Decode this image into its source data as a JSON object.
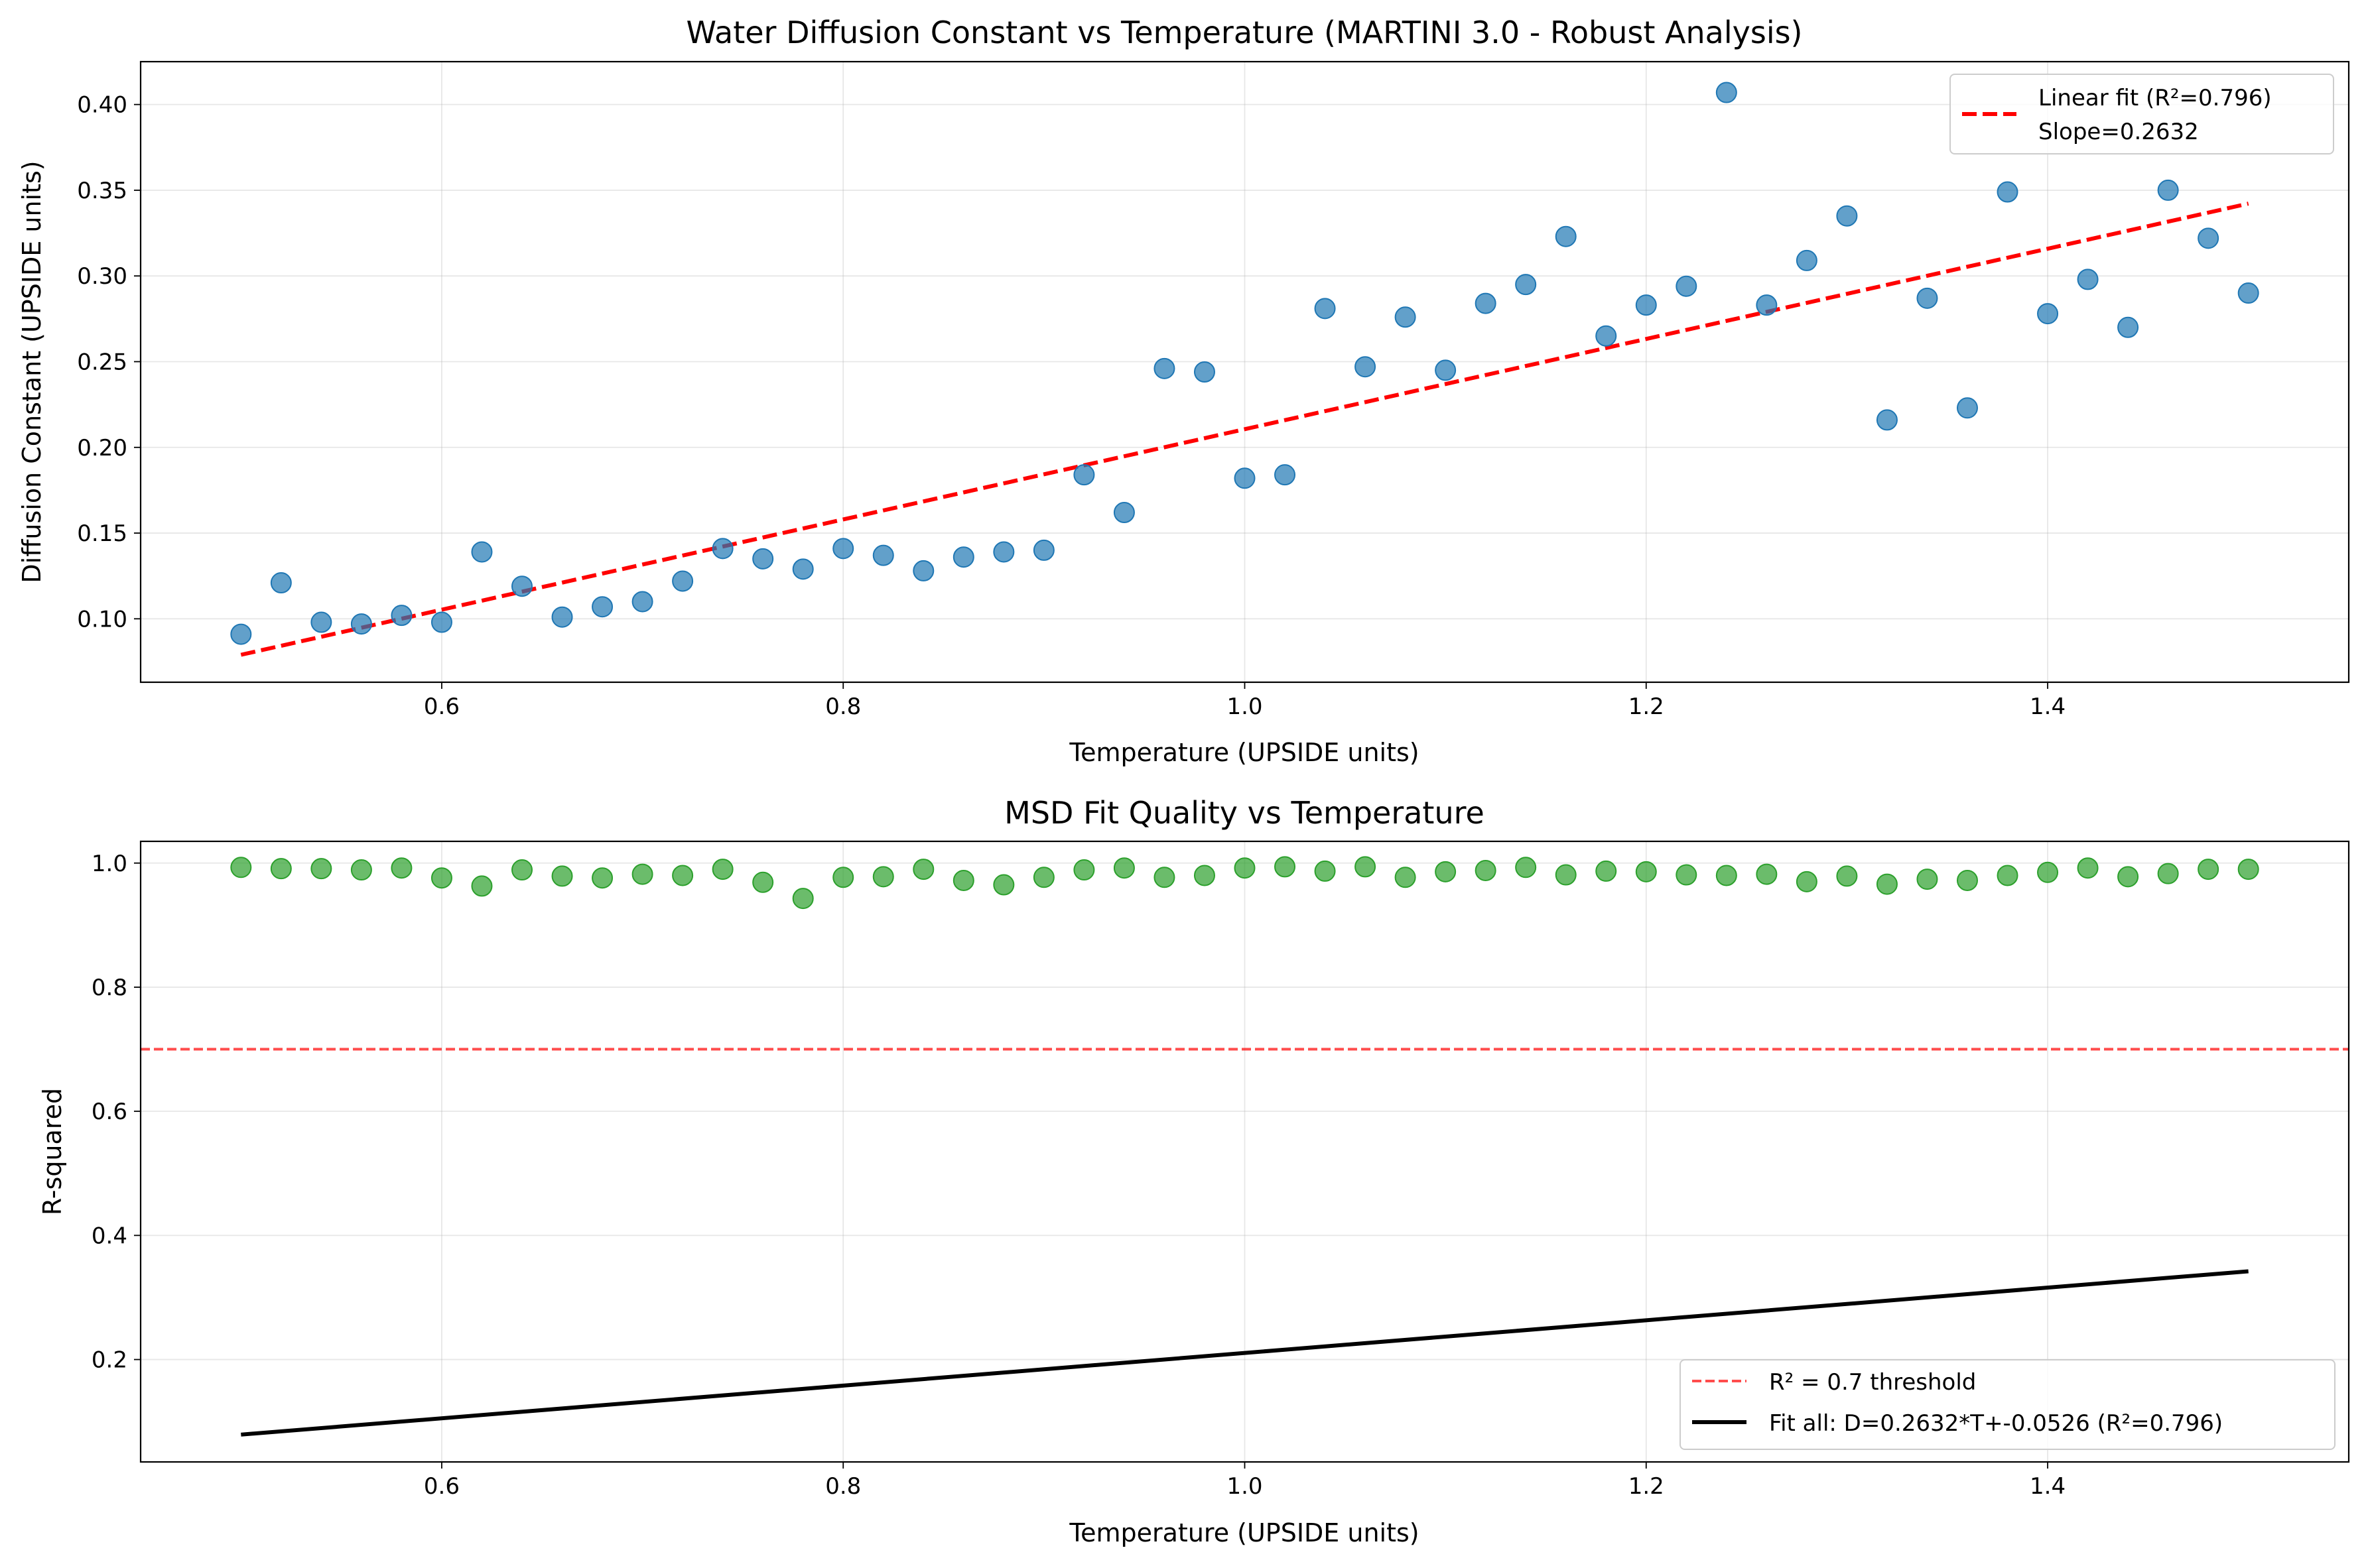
{
  "chart_data": [
    {
      "type": "scatter",
      "title": "Water Diffusion Constant vs Temperature (MARTINI 3.0 - Robust Analysis)",
      "xlabel": "Temperature (UPSIDE units)",
      "ylabel": "Diffusion Constant (UPSIDE units)",
      "xlim": [
        0.45,
        1.55
      ],
      "ylim": [
        0.063,
        0.425
      ],
      "grid": true,
      "legend_position": "top-right",
      "x_ticks": [
        0.6,
        0.8,
        1.0,
        1.2,
        1.4
      ],
      "x_tick_labels": [
        "0.6",
        "0.8",
        "1.0",
        "1.2",
        "1.4"
      ],
      "y_ticks": [
        0.1,
        0.15,
        0.2,
        0.25,
        0.3,
        0.35,
        0.4
      ],
      "y_tick_labels": [
        "0.10",
        "0.15",
        "0.20",
        "0.25",
        "0.30",
        "0.35",
        "0.40"
      ],
      "series": [
        {
          "kind": "scatter",
          "color": "#1f77b4",
          "x": [
            0.5,
            0.52,
            0.54,
            0.56,
            0.58,
            0.6,
            0.62,
            0.64,
            0.66,
            0.68,
            0.7,
            0.72,
            0.74,
            0.76,
            0.78,
            0.8,
            0.82,
            0.84,
            0.86,
            0.88,
            0.9,
            0.92,
            0.94,
            0.96,
            0.98,
            1.0,
            1.02,
            1.04,
            1.06,
            1.08,
            1.1,
            1.12,
            1.14,
            1.16,
            1.18,
            1.2,
            1.22,
            1.24,
            1.26,
            1.28,
            1.3,
            1.32,
            1.34,
            1.36,
            1.38,
            1.4,
            1.42,
            1.44,
            1.46,
            1.48,
            1.5
          ],
          "y": [
            0.091,
            0.121,
            0.098,
            0.097,
            0.102,
            0.098,
            0.139,
            0.119,
            0.101,
            0.107,
            0.11,
            0.122,
            0.141,
            0.135,
            0.129,
            0.141,
            0.137,
            0.128,
            0.136,
            0.139,
            0.14,
            0.184,
            0.162,
            0.246,
            0.244,
            0.182,
            0.184,
            0.281,
            0.247,
            0.276,
            0.245,
            0.284,
            0.295,
            0.323,
            0.265,
            0.283,
            0.294,
            0.407,
            0.283,
            0.309,
            0.335,
            0.216,
            0.287,
            0.223,
            0.349,
            0.278,
            0.298,
            0.27,
            0.35,
            0.322,
            0.29
          ]
        },
        {
          "kind": "line",
          "style": "dashed",
          "color": "#ff0000",
          "x": [
            0.5,
            1.5
          ],
          "y": [
            0.079,
            0.3422
          ]
        }
      ],
      "legend": [
        {
          "kind": "dashed",
          "color": "#ff0000",
          "label_line1": "Linear fit (R²=0.796)",
          "label_line2": "Slope=0.2632"
        }
      ]
    },
    {
      "type": "scatter",
      "title": "MSD Fit Quality vs Temperature",
      "xlabel": "Temperature (UPSIDE units)",
      "ylabel": "R-squared",
      "xlim": [
        0.45,
        1.55
      ],
      "ylim": [
        0.035,
        1.035
      ],
      "grid": true,
      "legend_position": "bottom-right",
      "x_ticks": [
        0.6,
        0.8,
        1.0,
        1.2,
        1.4
      ],
      "x_tick_labels": [
        "0.6",
        "0.8",
        "1.0",
        "1.2",
        "1.4"
      ],
      "y_ticks": [
        0.2,
        0.4,
        0.6,
        0.8,
        1.0
      ],
      "y_tick_labels": [
        "0.2",
        "0.4",
        "0.6",
        "0.8",
        "1.0"
      ],
      "series": [
        {
          "kind": "scatter",
          "color": "#2ca02c",
          "x": [
            0.5,
            0.52,
            0.54,
            0.56,
            0.58,
            0.6,
            0.62,
            0.64,
            0.66,
            0.68,
            0.7,
            0.72,
            0.74,
            0.76,
            0.78,
            0.8,
            0.82,
            0.84,
            0.86,
            0.88,
            0.9,
            0.92,
            0.94,
            0.96,
            0.98,
            1.0,
            1.02,
            1.04,
            1.06,
            1.08,
            1.1,
            1.12,
            1.14,
            1.16,
            1.18,
            1.2,
            1.22,
            1.24,
            1.26,
            1.28,
            1.3,
            1.32,
            1.34,
            1.36,
            1.38,
            1.4,
            1.42,
            1.44,
            1.46,
            1.48,
            1.5
          ],
          "y": [
            0.993,
            0.991,
            0.991,
            0.989,
            0.992,
            0.976,
            0.963,
            0.989,
            0.979,
            0.976,
            0.982,
            0.98,
            0.99,
            0.969,
            0.943,
            0.977,
            0.978,
            0.99,
            0.972,
            0.965,
            0.977,
            0.989,
            0.992,
            0.977,
            0.98,
            0.992,
            0.994,
            0.987,
            0.994,
            0.977,
            0.986,
            0.988,
            0.993,
            0.981,
            0.987,
            0.986,
            0.981,
            0.98,
            0.982,
            0.97,
            0.979,
            0.966,
            0.974,
            0.972,
            0.98,
            0.985,
            0.992,
            0.978,
            0.983,
            0.99,
            0.99
          ]
        },
        {
          "kind": "hline",
          "style": "dashed",
          "color": "#ff0000",
          "opacity": 0.7,
          "y": 0.7
        },
        {
          "kind": "line",
          "style": "solid",
          "color": "#000000",
          "x": [
            0.5,
            1.5
          ],
          "y": [
            0.079,
            0.3422
          ]
        }
      ],
      "legend": [
        {
          "kind": "dashed-faint",
          "color": "#ff0000",
          "label_line1": "R² = 0.7 threshold"
        },
        {
          "kind": "solid",
          "color": "#000000",
          "label_line1": "Fit all: D=0.2632*T+-0.0526 (R²=0.796)"
        }
      ]
    }
  ]
}
